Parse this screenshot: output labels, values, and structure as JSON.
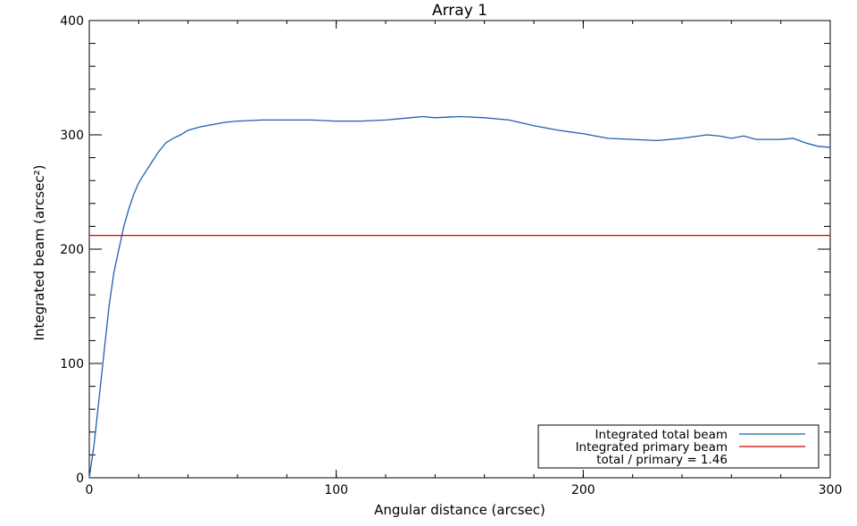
{
  "chart_data": {
    "type": "line",
    "title": "Array 1",
    "xlabel": "Angular distance (arcsec)",
    "ylabel": "Integrated beam (arcsec²)",
    "xlim": [
      0,
      300
    ],
    "ylim": [
      0,
      400
    ],
    "xticks": [
      0,
      100,
      200,
      300
    ],
    "yticks": [
      0,
      100,
      200,
      300,
      400
    ],
    "grid": false,
    "legend_position": "bottom-right",
    "series": [
      {
        "name": "Integrated total beam",
        "color": "#1f5fb0",
        "x": [
          0,
          2,
          4,
          6,
          8,
          10,
          12,
          14,
          16,
          18,
          20,
          22,
          25,
          28,
          31,
          34,
          37,
          40,
          45,
          50,
          55,
          60,
          70,
          80,
          90,
          100,
          110,
          120,
          130,
          135,
          140,
          150,
          160,
          170,
          180,
          190,
          200,
          210,
          220,
          230,
          240,
          250,
          255,
          260,
          265,
          270,
          280,
          285,
          290,
          295,
          300
        ],
        "y": [
          0,
          30,
          70,
          110,
          150,
          180,
          200,
          220,
          235,
          248,
          258,
          265,
          275,
          285,
          293,
          297,
          300,
          304,
          307,
          309,
          311,
          312,
          313,
          313,
          313,
          312,
          312,
          313,
          315,
          316,
          315,
          316,
          315,
          313,
          308,
          304,
          301,
          297,
          296,
          295,
          297,
          300,
          299,
          297,
          299,
          296,
          296,
          297,
          293,
          290,
          289
        ]
      },
      {
        "name": "Integrated primary beam",
        "color": "#d00000",
        "x": [
          0,
          300
        ],
        "y": [
          212,
          212
        ]
      }
    ],
    "legend_entries": [
      "Integrated total beam",
      "Integrated primary beam"
    ],
    "annotation": "total / primary = 1.46"
  }
}
